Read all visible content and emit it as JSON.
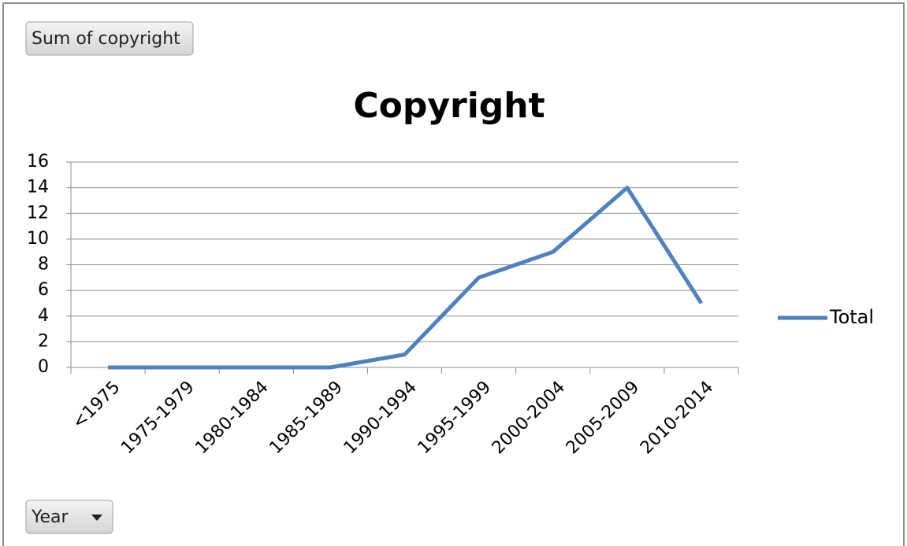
{
  "chart_data": {
    "type": "line",
    "title": "Copyright",
    "value_field_button": "Sum of copyright",
    "axis_field_button": "Year",
    "categories": [
      "<1975",
      "1975-1979",
      "1980-1984",
      "1985-1989",
      "1990-1994",
      "1995-1999",
      "2000-2004",
      "2005-2009",
      "2010-2014"
    ],
    "series": [
      {
        "name": "Total",
        "color": "#4f81bd",
        "values": [
          0,
          0,
          0,
          0,
          1,
          7,
          9,
          14,
          5
        ]
      }
    ],
    "ylim": [
      0,
      16
    ],
    "yticks": [
      0,
      2,
      4,
      6,
      8,
      10,
      12,
      14,
      16
    ],
    "grid": true,
    "legend": "right"
  }
}
